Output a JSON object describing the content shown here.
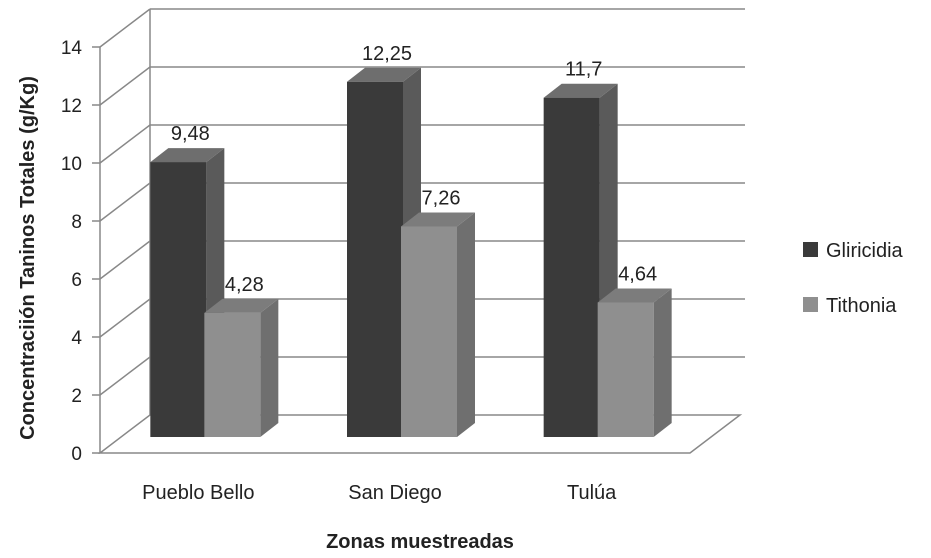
{
  "chart_data": {
    "type": "bar",
    "title": "",
    "xlabel": "Zonas muestreadas",
    "ylabel": "Concentraciión Taninos Totales (g/Kg)",
    "categories": [
      "Pueblo Bello",
      "San Diego",
      "Tulúa"
    ],
    "series": [
      {
        "name": "Gliricidia",
        "values": [
          9.48,
          12.25,
          11.7
        ],
        "labels": [
          "9,48",
          "12,25",
          "11,7"
        ],
        "color": "#3a3a3a",
        "side_color": "#5a5a5a",
        "top_color": "#6e6e6e"
      },
      {
        "name": "Tithonia",
        "values": [
          4.28,
          7.26,
          4.64
        ],
        "labels": [
          "4,28",
          "7,26",
          "4,64"
        ],
        "color": "#8f8f8f",
        "side_color": "#6f6f6f",
        "top_color": "#7c7c7c"
      }
    ],
    "ylim": [
      0,
      14
    ],
    "yticks": [
      "0",
      "2",
      "4",
      "6",
      "8",
      "10",
      "12",
      "14"
    ],
    "grid": true,
    "style": "3d",
    "legend_position": "right"
  }
}
